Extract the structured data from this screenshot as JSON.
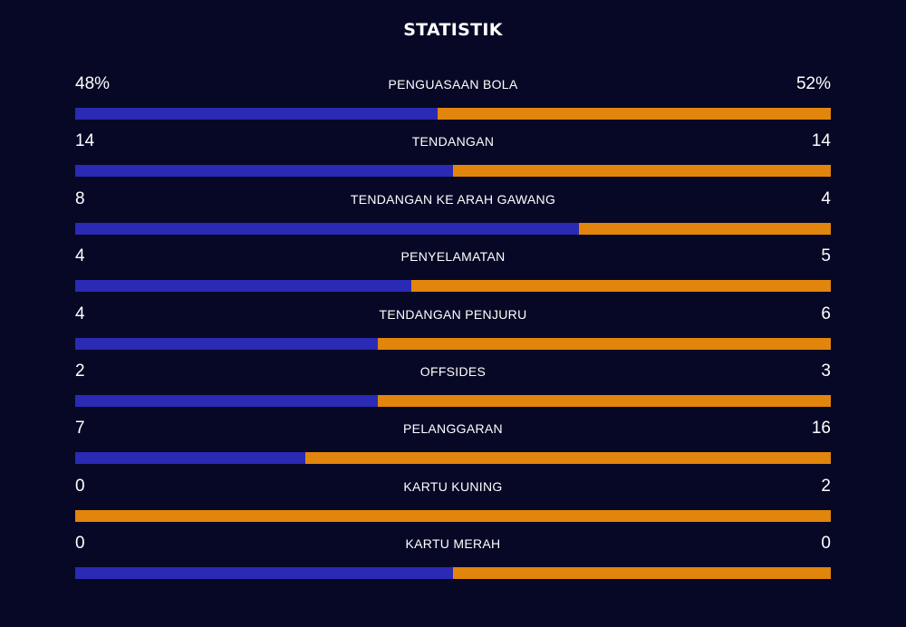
{
  "title": "STATISTIK",
  "colors": {
    "background": "#070826",
    "home_bar": "#2a2ab4",
    "away_bar": "#e2850c"
  },
  "chart_data": {
    "type": "bar",
    "title": "STATISTIK",
    "orientation": "horizontal-stacked-share",
    "categories": [
      "PENGUASAAN BOLA",
      "TENDANGAN",
      "TENDANGAN KE ARAH GAWANG",
      "PENYELAMATAN",
      "TENDANGAN PENJURU",
      "OFFSIDES",
      "PELANGGARAN",
      "KARTU KUNING",
      "KARTU MERAH"
    ],
    "series": [
      {
        "values": [
          48,
          14,
          8,
          4,
          4,
          2,
          7,
          0,
          0
        ]
      },
      {
        "values": [
          52,
          14,
          4,
          5,
          6,
          3,
          16,
          2,
          0
        ]
      }
    ],
    "rows": [
      {
        "label": "PENGUASAAN BOLA",
        "left": "48%",
        "right": "52%",
        "left_value": 48,
        "right_value": 52
      },
      {
        "label": "TENDANGAN",
        "left": "14",
        "right": "14",
        "left_value": 14,
        "right_value": 14
      },
      {
        "label": "TENDANGAN KE ARAH GAWANG",
        "left": "8",
        "right": "4",
        "left_value": 8,
        "right_value": 4
      },
      {
        "label": "PENYELAMATAN",
        "left": "4",
        "right": "5",
        "left_value": 4,
        "right_value": 5
      },
      {
        "label": "TENDANGAN PENJURU",
        "left": "4",
        "right": "6",
        "left_value": 4,
        "right_value": 6
      },
      {
        "label": "OFFSIDES",
        "left": "2",
        "right": "3",
        "left_value": 2,
        "right_value": 3
      },
      {
        "label": "PELANGGARAN",
        "left": "7",
        "right": "16",
        "left_value": 7,
        "right_value": 16
      },
      {
        "label": "KARTU KUNING",
        "left": "0",
        "right": "2",
        "left_value": 0,
        "right_value": 2
      },
      {
        "label": "KARTU MERAH",
        "left": "0",
        "right": "0",
        "left_value": 0,
        "right_value": 0
      }
    ],
    "legend": "none",
    "grid": false
  }
}
